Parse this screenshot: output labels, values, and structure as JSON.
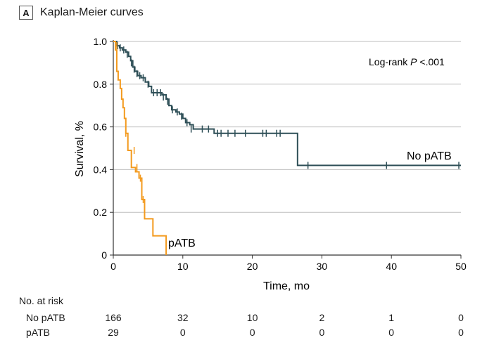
{
  "panel": {
    "badge": "A",
    "title": "Kaplan-Meier curves"
  },
  "annotation": {
    "prefix": "Log-rank ",
    "italic": "P",
    "suffix": " <.001"
  },
  "risk_table": {
    "heading": "No. at risk",
    "rows": [
      {
        "label": "No pATB",
        "values": [
          "166",
          "32",
          "10",
          "2",
          "1",
          "0"
        ]
      },
      {
        "label": "pATB",
        "values": [
          "29",
          "0",
          "0",
          "0",
          "0",
          "0"
        ]
      }
    ]
  },
  "chart_data": {
    "type": "line",
    "title": "Kaplan-Meier curves",
    "xlabel": "Time, mo",
    "ylabel": "Survival, %",
    "xlim": [
      0,
      50
    ],
    "ylim": [
      0,
      1.0
    ],
    "xticks": [
      0,
      10,
      20,
      30,
      40,
      50
    ],
    "yticks": [
      0,
      0.2,
      0.4,
      0.6,
      0.8,
      1.0
    ],
    "ytick_labels": [
      "0",
      "0.2",
      "0.4",
      "0.6",
      "0.8",
      "1.0"
    ],
    "grid": "horizontal",
    "colors": {
      "No pATB": "#2e4f57",
      "pATB": "#f39a1e"
    },
    "series": [
      {
        "name": "No pATB",
        "step": [
          [
            0,
            1.0
          ],
          [
            0.5,
            0.98
          ],
          [
            0.9,
            0.97
          ],
          [
            1.3,
            0.96
          ],
          [
            1.8,
            0.95
          ],
          [
            2.2,
            0.93
          ],
          [
            2.5,
            0.91
          ],
          [
            2.8,
            0.88
          ],
          [
            3.1,
            0.86
          ],
          [
            3.5,
            0.84
          ],
          [
            4.0,
            0.83
          ],
          [
            4.6,
            0.81
          ],
          [
            5.1,
            0.79
          ],
          [
            5.5,
            0.76
          ],
          [
            6.0,
            0.76
          ],
          [
            7.0,
            0.75
          ],
          [
            7.6,
            0.73
          ],
          [
            8.0,
            0.7
          ],
          [
            8.4,
            0.68
          ],
          [
            9.0,
            0.67
          ],
          [
            9.5,
            0.66
          ],
          [
            10.0,
            0.64
          ],
          [
            10.4,
            0.62
          ],
          [
            11.0,
            0.61
          ],
          [
            11.5,
            0.59
          ],
          [
            12.5,
            0.59
          ],
          [
            14.5,
            0.57
          ],
          [
            26.5,
            0.42
          ],
          [
            50,
            0.42
          ]
        ],
        "censored": [
          [
            0.6,
            0.98
          ],
          [
            1.0,
            0.97
          ],
          [
            1.5,
            0.96
          ],
          [
            2.0,
            0.94
          ],
          [
            2.6,
            0.9
          ],
          [
            3.0,
            0.87
          ],
          [
            3.4,
            0.85
          ],
          [
            3.8,
            0.84
          ],
          [
            4.3,
            0.83
          ],
          [
            5.0,
            0.8
          ],
          [
            5.8,
            0.76
          ],
          [
            6.3,
            0.76
          ],
          [
            6.8,
            0.76
          ],
          [
            7.2,
            0.74
          ],
          [
            7.8,
            0.72
          ],
          [
            8.5,
            0.68
          ],
          [
            9.2,
            0.67
          ],
          [
            9.8,
            0.65
          ],
          [
            10.6,
            0.62
          ],
          [
            11.2,
            0.59
          ],
          [
            12.8,
            0.59
          ],
          [
            13.7,
            0.59
          ],
          [
            15.0,
            0.57
          ],
          [
            15.5,
            0.57
          ],
          [
            16.5,
            0.57
          ],
          [
            17.5,
            0.57
          ],
          [
            19.0,
            0.57
          ],
          [
            21.5,
            0.57
          ],
          [
            22.0,
            0.57
          ],
          [
            23.5,
            0.57
          ],
          [
            24.0,
            0.57
          ],
          [
            28.0,
            0.42
          ],
          [
            39.3,
            0.42
          ],
          [
            49.7,
            0.42
          ]
        ],
        "label": "No pATB"
      },
      {
        "name": "pATB",
        "step": [
          [
            0,
            1.0
          ],
          [
            0.3,
            0.96
          ],
          [
            0.5,
            0.86
          ],
          [
            0.7,
            0.82
          ],
          [
            1.0,
            0.78
          ],
          [
            1.2,
            0.73
          ],
          [
            1.4,
            0.69
          ],
          [
            1.6,
            0.64
          ],
          [
            1.8,
            0.57
          ],
          [
            2.1,
            0.49
          ],
          [
            2.6,
            0.41
          ],
          [
            3.2,
            0.39
          ],
          [
            3.7,
            0.36
          ],
          [
            4.1,
            0.26
          ],
          [
            4.5,
            0.17
          ],
          [
            5.7,
            0.09
          ],
          [
            7.6,
            0.0
          ]
        ],
        "censored": [
          [
            0.5,
            0.98
          ],
          [
            1.8,
            0.57
          ],
          [
            3.0,
            0.49
          ],
          [
            3.4,
            0.41
          ],
          [
            3.9,
            0.36
          ],
          [
            4.3,
            0.26
          ]
        ],
        "label": "pATB"
      }
    ]
  }
}
